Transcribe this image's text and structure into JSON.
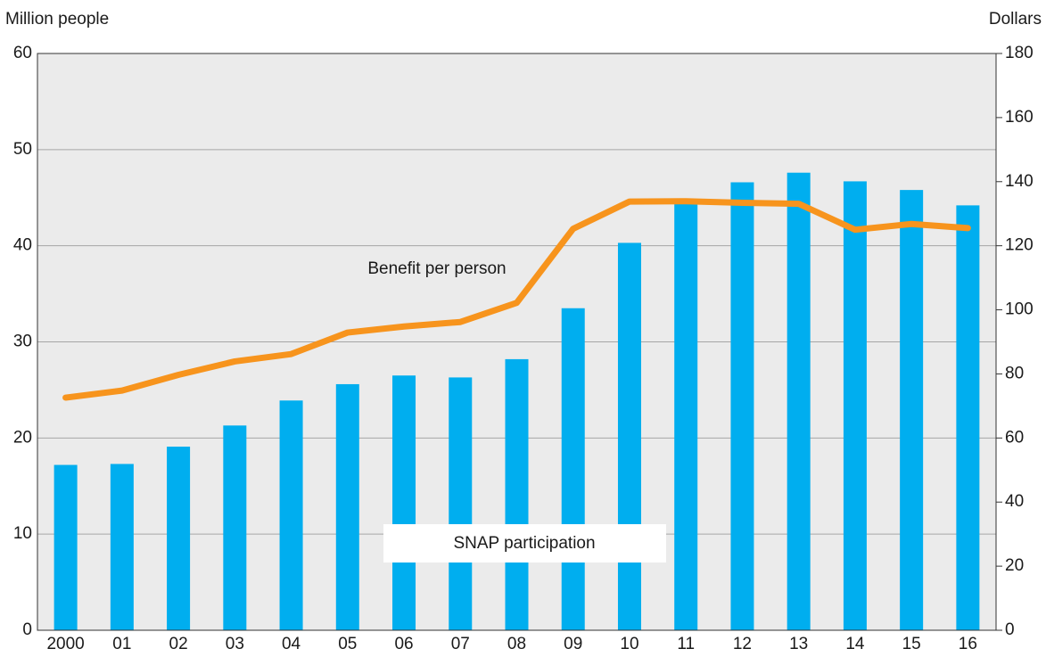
{
  "chart_data": {
    "type": "bar_line",
    "y_label": "Million people",
    "y2_label": "Dollars",
    "categories": [
      "2000",
      "01",
      "02",
      "03",
      "04",
      "05",
      "06",
      "07",
      "08",
      "09",
      "10",
      "11",
      "12",
      "13",
      "14",
      "15",
      "16"
    ],
    "series": [
      {
        "name": "SNAP participation",
        "type": "bar",
        "color": "#00aeef",
        "values": [
          17.2,
          17.3,
          19.1,
          21.3,
          23.9,
          25.6,
          26.5,
          26.3,
          28.2,
          33.5,
          40.3,
          44.7,
          46.6,
          47.6,
          46.7,
          45.8,
          44.2
        ]
      },
      {
        "name": "Benefit per person",
        "type": "line",
        "axis": "y2",
        "color": "#f7941d",
        "values": [
          72.6,
          74.8,
          79.7,
          83.9,
          86.2,
          92.9,
          94.8,
          96.2,
          102.2,
          125.3,
          133.8,
          133.9,
          133.4,
          133.1,
          125.0,
          126.8,
          125.5
        ]
      }
    ],
    "ylim": [
      0,
      60
    ],
    "yticks": [
      0,
      10,
      20,
      30,
      40,
      50,
      60
    ],
    "y2lim": [
      0,
      180
    ],
    "y2ticks": [
      0,
      20,
      40,
      60,
      80,
      100,
      120,
      140,
      160,
      180
    ],
    "grid": true
  }
}
